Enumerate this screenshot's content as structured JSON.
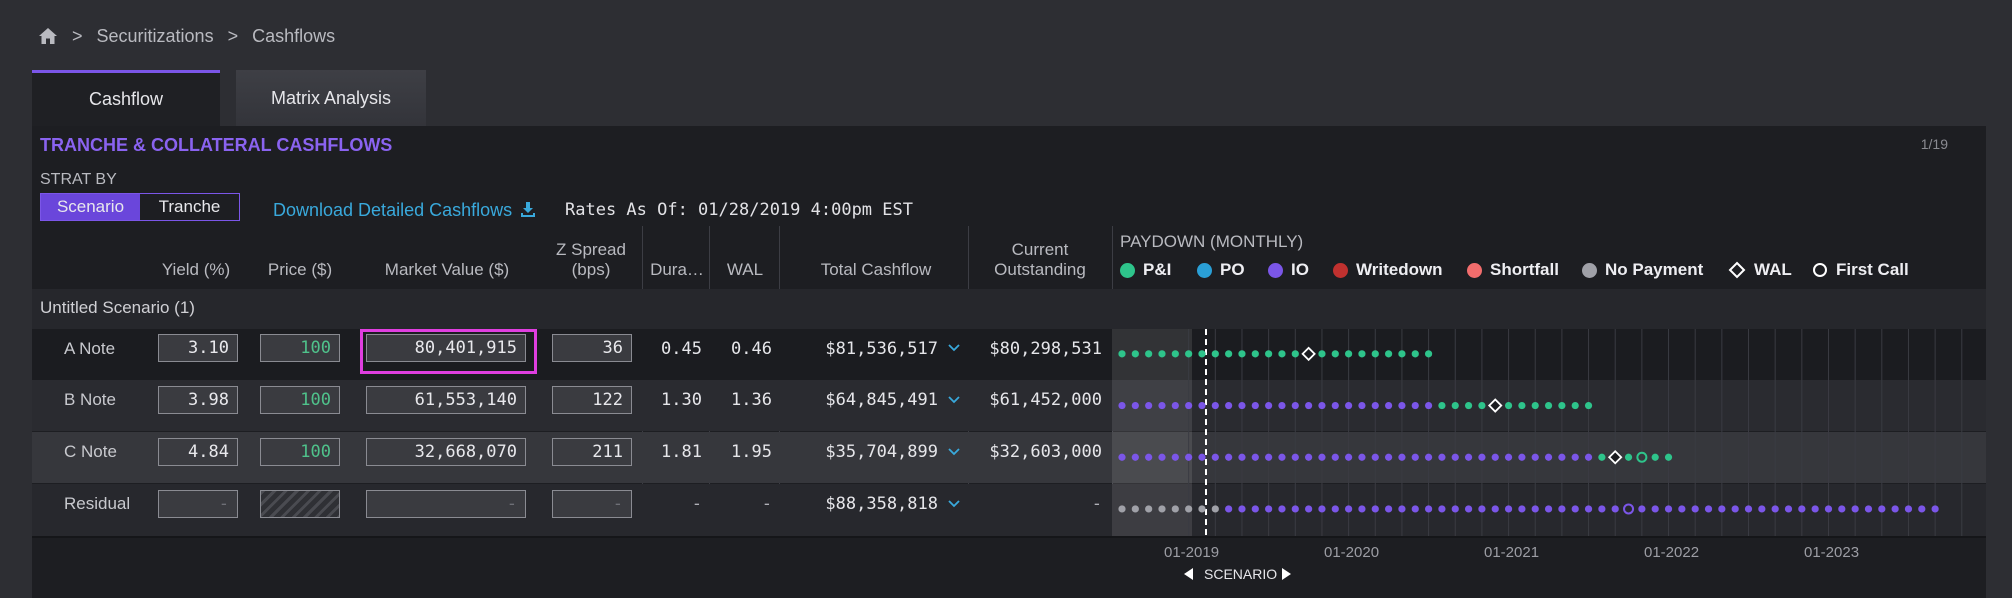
{
  "breadcrumb": {
    "items": [
      "Securitizations",
      "Cashflows"
    ],
    "separator": ">"
  },
  "tabs": [
    {
      "label": "Cashflow"
    },
    {
      "label": "Matrix Analysis"
    }
  ],
  "panel": {
    "title": "TRANCHE & COLLATERAL CASHFLOWS",
    "counter": "1/19",
    "strat_by": {
      "label": "STRAT BY",
      "options": [
        "Scenario",
        "Tranche"
      ],
      "selected": "Scenario"
    },
    "download_label": "Download Detailed Cashflows",
    "rates_as_of": "Rates As Of: 01/28/2019 4:00pm EST"
  },
  "columns": {
    "yield": "Yield (%)",
    "price": "Price ($)",
    "market_value": "Market Value ($)",
    "z_spread_1": "Z Spread",
    "z_spread_2": "(bps)",
    "duration": "Dura…",
    "wal": "WAL",
    "total_cashflow": "Total Cashflow",
    "current_1": "Current",
    "current_2": "Outstanding",
    "paydown": "PAYDOWN (MONTHLY)"
  },
  "legend": [
    {
      "label": "P&I",
      "color": "#2ec48b",
      "shape": "dot"
    },
    {
      "label": "PO",
      "color": "#2a9fd6",
      "shape": "dot"
    },
    {
      "label": "IO",
      "color": "#7b56e8",
      "shape": "dot"
    },
    {
      "label": "Writedown",
      "color": "#c0312f",
      "shape": "dot"
    },
    {
      "label": "Shortfall",
      "color": "#f26d6d",
      "shape": "dot"
    },
    {
      "label": "No Payment",
      "color": "#a0a1a8",
      "shape": "dot"
    },
    {
      "label": "WAL",
      "color": "#ffffff",
      "shape": "diamond"
    },
    {
      "label": "First Call",
      "color": "#ffffff",
      "shape": "ring"
    }
  ],
  "scenario_group": "Untitled Scenario (1)",
  "rows": [
    {
      "name": "A Note",
      "yield": "3.10",
      "price": "100",
      "market_value": "80,401,915",
      "z_spread": "36",
      "duration": "0.45",
      "wal": "0.46",
      "total_cashflow": "$81,536,517",
      "current": "$80,298,531"
    },
    {
      "name": "B Note",
      "yield": "3.98",
      "price": "100",
      "market_value": "61,553,140",
      "z_spread": "122",
      "duration": "1.30",
      "wal": "1.36",
      "total_cashflow": "$64,845,491",
      "current": "$61,452,000"
    },
    {
      "name": "C Note",
      "yield": "4.84",
      "price": "100",
      "market_value": "32,668,070",
      "z_spread": "211",
      "duration": "1.81",
      "wal": "1.95",
      "total_cashflow": "$35,704,899",
      "current": "$32,603,000"
    },
    {
      "name": "Residual",
      "yield": "-",
      "price": "",
      "market_value": "-",
      "z_spread": "-",
      "duration": "-",
      "wal": "-",
      "total_cashflow": "$88,358,818",
      "current": "-"
    }
  ],
  "paydown": {
    "months_per_dot": 1,
    "series": [
      {
        "row": "A Note",
        "segments": [
          {
            "type": "P&I",
            "count": 24
          }
        ],
        "wal_index": 14,
        "first_call_index": null
      },
      {
        "row": "B Note",
        "segments": [
          {
            "type": "IO",
            "count": 24
          },
          {
            "type": "P&I",
            "count": 12
          }
        ],
        "wal_index": 28,
        "first_call_index": null
      },
      {
        "row": "C Note",
        "segments": [
          {
            "type": "IO",
            "count": 36
          },
          {
            "type": "P&I",
            "count": 6
          }
        ],
        "wal_index": 37,
        "first_call_index": 39
      },
      {
        "row": "Residual",
        "segments": [
          {
            "type": "No Payment",
            "count": 8
          },
          {
            "type": "IO",
            "count": 54
          }
        ],
        "wal_index": null,
        "first_call_index": 38
      }
    ]
  },
  "axis": {
    "labels": [
      "01-2019",
      "01-2020",
      "01-2021",
      "01-2022",
      "01-2023"
    ],
    "scenario_label": "SCENARIO"
  }
}
